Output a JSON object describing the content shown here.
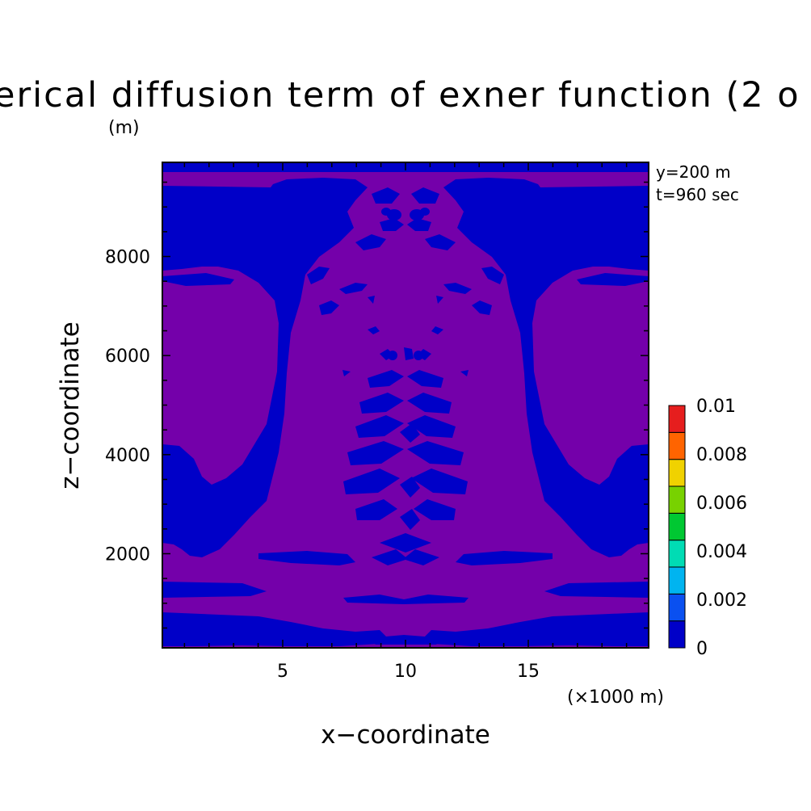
{
  "chart_data": {
    "type": "heatmap",
    "title": "erical diffusion term of exner function (2 o",
    "title_unit": "(m)",
    "xlabel": "x−coordinate",
    "ylabel": "z−coordinate",
    "x_unit_label": "(×1000 m)",
    "xlim": [
      0.1,
      19.9
    ],
    "ylim": [
      100,
      9900
    ],
    "x_ticks": [
      5,
      10,
      15
    ],
    "y_ticks": [
      2000,
      4000,
      6000,
      8000
    ],
    "annotations": [
      "y=200 m",
      "t=960 sec"
    ],
    "colorbar": {
      "levels": [
        0,
        0.00125,
        0.0025,
        0.00375,
        0.005,
        0.00625,
        0.0075,
        0.00875,
        0.01
      ],
      "labels": [
        "0",
        "0.002",
        "0.004",
        "0.006",
        "0.008",
        "0.01"
      ],
      "colors": [
        "#0000c8",
        "#0a50f0",
        "#00b4f0",
        "#00dcb4",
        "#00c832",
        "#78d200",
        "#f0d200",
        "#ff6400",
        "#e61e1e"
      ]
    },
    "fill_colors": {
      "background": "#7400aa",
      "negative_region": "#0000c8"
    }
  }
}
